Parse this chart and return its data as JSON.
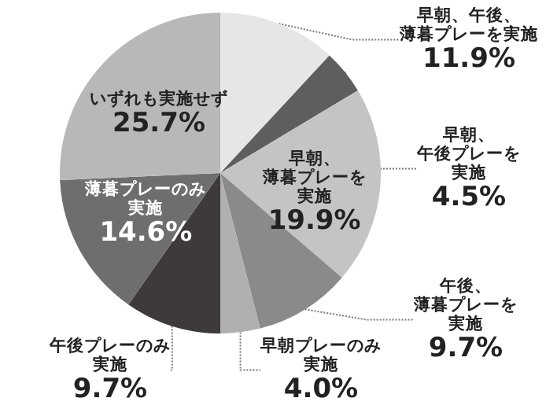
{
  "chart_data": {
    "type": "pie",
    "categories": [
      "早朝、午後、薄暮プレーを実施",
      "早朝、午後プレーを実施",
      "早朝、薄暮プレーを実施",
      "午後、薄暮プレーを実施",
      "早朝プレーのみ実施",
      "午後プレーのみ実施",
      "薄暮プレーのみ実施",
      "いずれも実施せず"
    ],
    "values": [
      11.9,
      4.5,
      19.9,
      9.7,
      4.0,
      9.7,
      14.6,
      25.7
    ],
    "colors": [
      "#e6e6e6",
      "#5e5e5e",
      "#c4c4c4",
      "#8a8a8a",
      "#b0b0b0",
      "#3d3a39",
      "#6e6e6e",
      "#b8b8b8"
    ],
    "value_labels": [
      "11.9%",
      "4.5%",
      "19.9%",
      "9.7%",
      "4.0%",
      "9.7%",
      "14.6%",
      "25.7%"
    ]
  }
}
